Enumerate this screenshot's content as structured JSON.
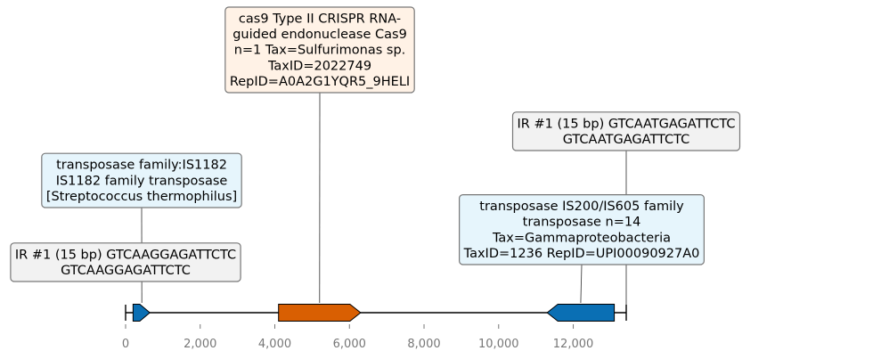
{
  "chart_data": {
    "type": "genome-track",
    "sequence_length": 13420,
    "xlim": [
      0,
      13420
    ],
    "ticks": [
      "0",
      "2,000",
      "4,000",
      "6,000",
      "8,000",
      "10,000",
      "12,000"
    ],
    "tick_values": [
      0,
      2000,
      4000,
      6000,
      8000,
      10000,
      12000
    ],
    "features": [
      {
        "id": "ir-left",
        "kind": "repeat",
        "start": 0,
        "end": 15,
        "strand": 0
      },
      {
        "id": "transposase-is1182",
        "kind": "cds",
        "start": 200,
        "end": 650,
        "strand": 1,
        "color": "#0a6fb4"
      },
      {
        "id": "cas9",
        "kind": "cds",
        "start": 4100,
        "end": 6300,
        "strand": 1,
        "color": "#d95f02"
      },
      {
        "id": "transposase-is200",
        "kind": "cds",
        "start": 11300,
        "end": 13100,
        "strand": -1,
        "color": "#0a6fb4"
      },
      {
        "id": "ir-right",
        "kind": "repeat",
        "start": 13405,
        "end": 13420,
        "strand": 0
      }
    ],
    "annotations": [
      {
        "id": "ir-left",
        "anchor": 0,
        "fill": "#f2f2f2",
        "lines": [
          "IR #1 (15 bp) GTCAAGGAGATTCTC",
          "GTCAAGGAGATTCTC"
        ]
      },
      {
        "id": "transposase-is1182",
        "anchor": 435,
        "fill": "#e6f5fc",
        "lines": [
          "transposase family:IS1182",
          "IS1182 family transposase",
          "[Streptococcus thermophilus]"
        ]
      },
      {
        "id": "cas9",
        "anchor": 5200,
        "fill": "#fff2e6",
        "lines": [
          "cas9 Type II CRISPR RNA-",
          "guided endonuclease Cas9",
          "n=1 Tax=Sulfurimonas sp.",
          "TaxID=2022749",
          "RepID=A0A2G1YQR5_9HELI"
        ]
      },
      {
        "id": "transposase-is200",
        "anchor": 12200,
        "fill": "#e6f5fc",
        "lines": [
          "transposase IS200/IS605 family",
          "transposase n=14",
          "Tax=Gammaproteobacteria",
          "TaxID=1236 RepID=UPI00090927A0"
        ]
      },
      {
        "id": "ir-right",
        "anchor": 13420,
        "fill": "#f2f2f2",
        "lines": [
          "IR #1 (15 bp) GTCAATGAGATTCTC",
          "GTCAATGAGATTCTC"
        ]
      }
    ]
  }
}
